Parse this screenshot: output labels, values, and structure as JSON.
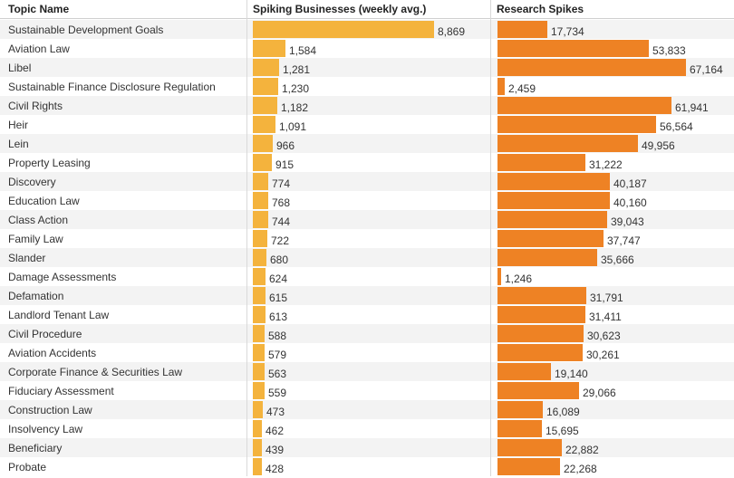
{
  "headers": {
    "topic": "Topic Name",
    "spiking": "Spiking Businesses (weekly avg.)",
    "research": "Research Spikes"
  },
  "colors": {
    "spiking_bar": "#f4b33d",
    "research_bar": "#ee8224",
    "row_shade": "#f3f3f3"
  },
  "chart_data": {
    "type": "bar",
    "title": "",
    "categories": [
      "Sustainable Development Goals",
      "Aviation Law",
      "Libel",
      "Sustainable Finance Disclosure Regulation",
      "Civil Rights",
      "Heir",
      "Lein",
      "Property Leasing",
      "Discovery",
      "Education Law",
      "Class Action",
      "Family Law",
      "Slander",
      "Damage Assessments",
      "Defamation",
      "Landlord Tenant Law",
      "Civil Procedure",
      "Aviation Accidents",
      "Corporate Finance & Securities Law",
      "Fiduciary Assessment",
      "Construction Law",
      "Insolvency Law",
      "Beneficiary",
      "Probate"
    ],
    "series": [
      {
        "name": "Spiking Businesses (weekly avg.)",
        "values": [
          8869,
          1584,
          1281,
          1230,
          1182,
          1091,
          966,
          915,
          774,
          768,
          744,
          722,
          680,
          624,
          615,
          613,
          588,
          579,
          563,
          559,
          473,
          462,
          439,
          428
        ],
        "labels": [
          "8,869",
          "1,584",
          "1,281",
          "1,230",
          "1,182",
          "1,091",
          "966",
          "915",
          "774",
          "768",
          "744",
          "722",
          "680",
          "624",
          "615",
          "613",
          "588",
          "579",
          "563",
          "559",
          "473",
          "462",
          "439",
          "428"
        ],
        "xlim": [
          0,
          8869
        ]
      },
      {
        "name": "Research Spikes",
        "values": [
          17734,
          53833,
          67164,
          2459,
          61941,
          56564,
          49956,
          31222,
          40187,
          40160,
          39043,
          37747,
          35666,
          1246,
          31791,
          31411,
          30623,
          30261,
          19140,
          29066,
          16089,
          15695,
          22882,
          22268
        ],
        "labels": [
          "17,734",
          "53,833",
          "67,164",
          "2,459",
          "61,941",
          "56,564",
          "49,956",
          "31,222",
          "40,187",
          "40,160",
          "39,043",
          "37,747",
          "35,666",
          "1,246",
          "31,791",
          "31,411",
          "30,623",
          "30,261",
          "19,140",
          "29,066",
          "16,089",
          "15,695",
          "22,882",
          "22,268"
        ],
        "xlim": [
          0,
          67164
        ]
      }
    ]
  }
}
